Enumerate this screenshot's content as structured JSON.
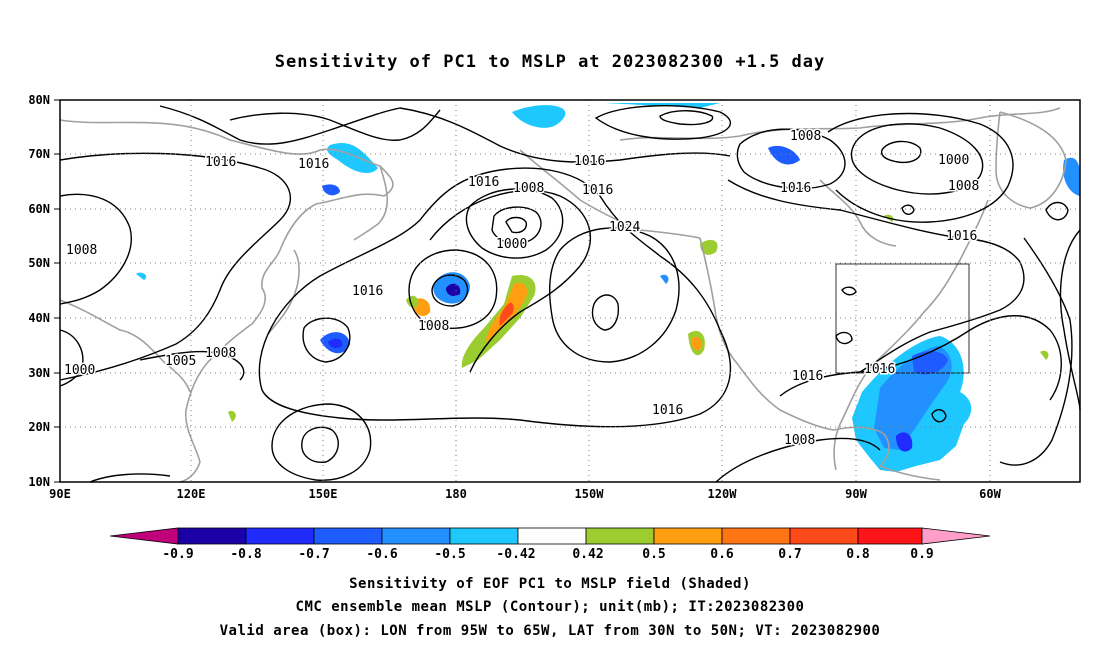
{
  "title": "Sensitivity of PC1 to MSLP at 2023082300 +1.5 day",
  "map": {
    "lon_range": [
      "90E",
      "40W"
    ],
    "lat_range": [
      10,
      80
    ],
    "lon_ticks": [
      "90E",
      "120E",
      "150E",
      "180",
      "150W",
      "120W",
      "90W",
      "60W"
    ],
    "lat_ticks": [
      "10N",
      "20N",
      "30N",
      "40N",
      "50N",
      "60N",
      "70N",
      "80N"
    ],
    "grid": "dotted",
    "valid_box": {
      "lon_w": "95W",
      "lon_e": "65W",
      "lat_s": "30N",
      "lat_n": "50N"
    }
  },
  "contour_labels": [
    "1016",
    "1016",
    "1016",
    "1016",
    "1016",
    "1016",
    "1016",
    "1016",
    "1016",
    "1016",
    "1008",
    "1008",
    "1008",
    "1008",
    "1008",
    "1008",
    "1008",
    "1000",
    "1000",
    "1000",
    "1005",
    "1024"
  ],
  "shading": {
    "colors": {
      "neg_09": "#c0007a",
      "neg_08": "#1c00a8",
      "neg_07": "#1f2bff",
      "neg_06": "#1e5cff",
      "neg_05": "#2290ff",
      "neg_042": "#1ec8ff",
      "white": "#ffffff",
      "pos_042": "#9bcd30",
      "pos_05": "#ff9e10",
      "pos_06": "#ff7515",
      "pos_07": "#ff4a1a",
      "pos_08": "#ff1418",
      "pos_09": "#ff9ec8"
    }
  },
  "colorbar": {
    "labels": [
      "-0.9",
      "-0.8",
      "-0.7",
      "-0.6",
      "-0.5",
      "-0.42",
      "0.42",
      "0.5",
      "0.6",
      "0.7",
      "0.8",
      "0.9"
    ],
    "colors": [
      "#c0007a",
      "#1c00a8",
      "#1f2bff",
      "#1e5cff",
      "#2290ff",
      "#1ec8ff",
      "#ffffff",
      "#9bcd30",
      "#ff9e10",
      "#ff7515",
      "#ff4a1a",
      "#ff1418",
      "#ff9ec8"
    ]
  },
  "footer": {
    "line1": "Sensitivity of EOF PC1 to MSLP field (Shaded)",
    "line2": "CMC ensemble mean MSLP (Contour); unit(mb); IT:2023082300",
    "line3": "Valid area (box): LON from 95W to 65W, LAT from 30N to 50N; VT: 2023082900"
  }
}
